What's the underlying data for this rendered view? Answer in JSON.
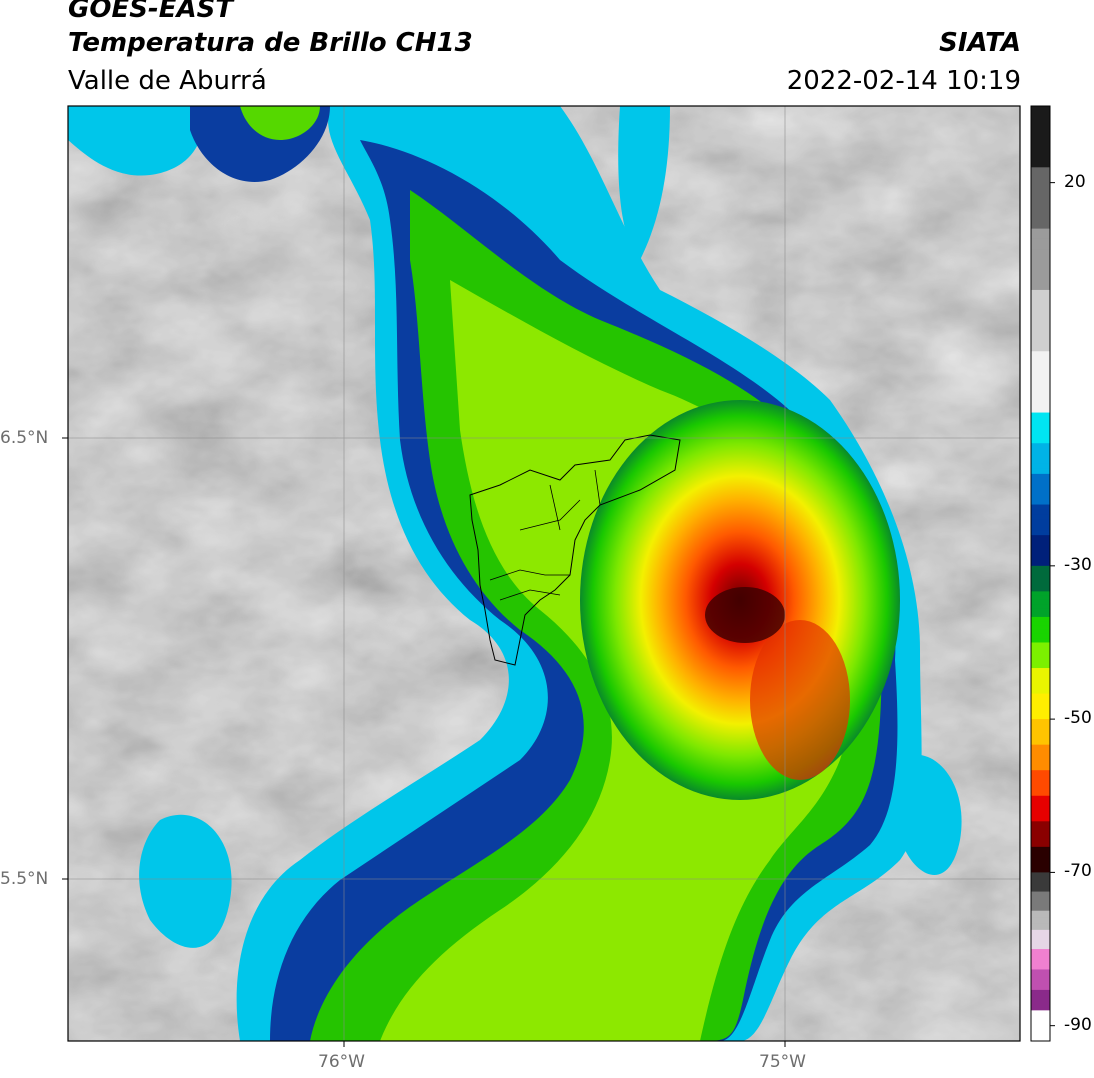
{
  "header": {
    "satellite": "GOES-EAST",
    "product": "Temperatura de Brillo CH13",
    "region": "Valle de Aburrá",
    "organization": "SIATA",
    "datetime": "2022-02-14 10:19"
  },
  "map": {
    "lat_labels": [
      "6.5°N",
      "5.5°N"
    ],
    "lon_labels": [
      "76°W",
      "75°W"
    ],
    "extent": {
      "lon_min": -76.62,
      "lon_max": -74.46,
      "lat_min": 5.14,
      "lat_max": 7.26
    },
    "grid_lats": [
      6.5,
      5.5
    ],
    "grid_lons": [
      -76.0,
      -75.0
    ]
  },
  "colorbar": {
    "tick_labels": [
      "20",
      "-30",
      "-50",
      "-70",
      "-90"
    ],
    "tick_values": [
      20,
      -30,
      -50,
      -70,
      -90
    ],
    "range": [
      -92,
      30
    ],
    "segments": [
      {
        "from": 30,
        "to": -10,
        "colors": [
          "#1a1a1a",
          "#666666",
          "#9b9b9b",
          "#cfcfcf",
          "#f2f2f2"
        ]
      },
      {
        "from": -10,
        "to": -30,
        "colors": [
          "#00e5f2",
          "#00b3e6",
          "#0070c8",
          "#003d9e",
          "#00207a"
        ]
      },
      {
        "from": -30,
        "to": -50,
        "colors": [
          "#006a3c",
          "#00a32a",
          "#19d400",
          "#7cf000",
          "#e9f500",
          "#ffee00"
        ]
      },
      {
        "from": -50,
        "to": -70,
        "colors": [
          "#ffc400",
          "#ff8c00",
          "#ff4a00",
          "#e60000",
          "#8a0000",
          "#2a0000"
        ]
      },
      {
        "from": -70,
        "to": -80,
        "colors": [
          "#3a3a3a",
          "#7a7a7a",
          "#b9b9b9",
          "#e6d6e6"
        ]
      },
      {
        "from": -80,
        "to": -88,
        "colors": [
          "#f080d0",
          "#c050b0",
          "#8a2a8a"
        ]
      },
      {
        "from": -88,
        "to": -92,
        "colors": [
          "#ffffff"
        ]
      }
    ]
  }
}
